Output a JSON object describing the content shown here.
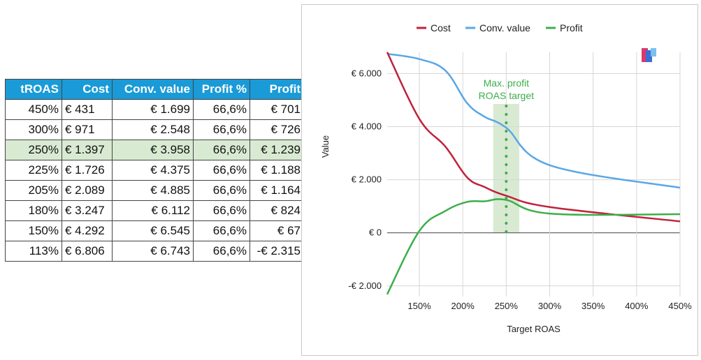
{
  "table": {
    "headers": [
      "tROAS",
      "Cost",
      "Conv. value",
      "Profit %",
      "Profit"
    ],
    "rows": [
      [
        "450%",
        "€ 431",
        "€ 1.699",
        "66,6%",
        "€ 701"
      ],
      [
        "300%",
        "€ 971",
        "€ 2.548",
        "66,6%",
        "€ 726"
      ],
      [
        "250%",
        "€ 1.397",
        "€ 3.958",
        "66,6%",
        "€ 1.239"
      ],
      [
        "225%",
        "€ 1.726",
        "€ 4.375",
        "66,6%",
        "€ 1.188"
      ],
      [
        "205%",
        "€ 2.089",
        "€ 4.885",
        "66,6%",
        "€ 1.164"
      ],
      [
        "180%",
        "€ 3.247",
        "€ 6.112",
        "66,6%",
        "€ 824"
      ],
      [
        "150%",
        "€ 4.292",
        "€ 6.545",
        "66,6%",
        "€ 67"
      ],
      [
        "113%",
        "€ 6.806",
        "€ 6.743",
        "66,6%",
        "-€ 2.315"
      ]
    ],
    "highlight_row": 2,
    "header_color": "#1a9bd7",
    "highlight_color": "#d9ead3"
  },
  "chart_data": {
    "type": "line",
    "title": "",
    "xlabel": "Target ROAS",
    "ylabel": "Value",
    "xlim": [
      113,
      450
    ],
    "ylim": [
      -2400,
      6800
    ],
    "x_ticks": [
      150,
      200,
      250,
      300,
      350,
      400,
      450
    ],
    "x_tick_labels": [
      "150%",
      "200%",
      "250%",
      "300%",
      "350%",
      "400%",
      "450%"
    ],
    "y_ticks": [
      -2000,
      0,
      2000,
      4000,
      6000
    ],
    "y_tick_labels": [
      "-€ 2.000",
      "€ 0",
      "€ 2.000",
      "€ 4.000",
      "€ 6.000"
    ],
    "grid": true,
    "legend_position": "top",
    "series": [
      {
        "name": "Cost",
        "color": "#c0223b",
        "x": [
          113,
          150,
          180,
          205,
          225,
          250,
          300,
          450
        ],
        "y": [
          6806,
          4292,
          3247,
          2089,
          1726,
          1397,
          971,
          431
        ]
      },
      {
        "name": "Conv. value",
        "color": "#5aa7e6",
        "x": [
          113,
          150,
          180,
          205,
          225,
          250,
          300,
          450
        ],
        "y": [
          6743,
          6545,
          6112,
          4885,
          4375,
          3958,
          2548,
          1699
        ]
      },
      {
        "name": "Profit",
        "color": "#3cae4b",
        "x": [
          113,
          150,
          180,
          205,
          225,
          250,
          300,
          450
        ],
        "y": [
          -2315,
          67,
          824,
          1164,
          1188,
          1239,
          726,
          701
        ]
      }
    ],
    "annotation": {
      "text_line1": "Max. profit",
      "text_line2": "ROAS target",
      "x": 250,
      "band": [
        235,
        265
      ],
      "color": "#3cae4b",
      "band_color": "#d9ead3"
    }
  }
}
